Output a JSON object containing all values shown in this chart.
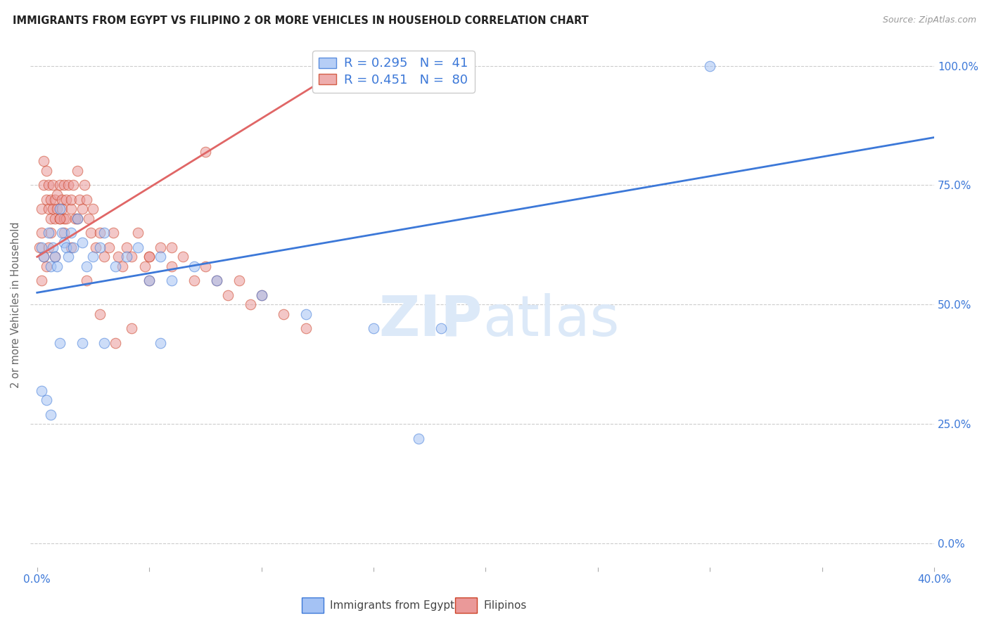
{
  "title": "IMMIGRANTS FROM EGYPT VS FILIPINO 2 OR MORE VEHICLES IN HOUSEHOLD CORRELATION CHART",
  "source": "Source: ZipAtlas.com",
  "ylabel": "2 or more Vehicles in Household",
  "legend_entry1": "R = 0.295   N =  41",
  "legend_entry2": "R = 0.451   N =  80",
  "legend_label1": "Immigrants from Egypt",
  "legend_label2": "Filipinos",
  "blue_fill": "#a4c2f4",
  "pink_fill": "#ea9999",
  "blue_edge": "#3c78d8",
  "pink_edge": "#cc4125",
  "blue_line": "#3c78d8",
  "pink_line": "#e06666",
  "watermark_color": "#dce9f8",
  "grid_color": "#cccccc",
  "tick_color": "#3c78d8",
  "ylabel_color": "#666666",
  "title_color": "#222222",
  "source_color": "#999999",
  "xlim": [
    0.0,
    0.4
  ],
  "ylim": [
    0.0,
    1.05
  ],
  "xtick_positions": [
    0.0,
    0.05,
    0.1,
    0.15,
    0.2,
    0.25,
    0.3,
    0.35,
    0.4
  ],
  "xtick_labels": [
    "0.0%",
    "",
    "",
    "",
    "",
    "",
    "",
    "",
    "40.0%"
  ],
  "ytick_positions": [
    0.0,
    0.25,
    0.5,
    0.75,
    1.0
  ],
  "ytick_labels": [
    "0.0%",
    "25.0%",
    "50.0%",
    "75.0%",
    "100.0%"
  ],
  "egypt_blue_line_x": [
    0.0,
    0.4
  ],
  "egypt_blue_line_y": [
    0.525,
    0.85
  ],
  "fil_pink_line_x": [
    0.0,
    0.145
  ],
  "fil_pink_line_y": [
    0.6,
    1.02
  ],
  "egypt_x": [
    0.002,
    0.003,
    0.005,
    0.006,
    0.007,
    0.008,
    0.009,
    0.01,
    0.011,
    0.012,
    0.013,
    0.014,
    0.015,
    0.016,
    0.018,
    0.02,
    0.022,
    0.025,
    0.028,
    0.03,
    0.035,
    0.04,
    0.045,
    0.05,
    0.055,
    0.06,
    0.07,
    0.08,
    0.1,
    0.12,
    0.15,
    0.18,
    0.002,
    0.004,
    0.006,
    0.01,
    0.02,
    0.03,
    0.055,
    0.17,
    0.3
  ],
  "egypt_y": [
    0.62,
    0.6,
    0.65,
    0.58,
    0.62,
    0.6,
    0.58,
    0.7,
    0.65,
    0.63,
    0.62,
    0.6,
    0.65,
    0.62,
    0.68,
    0.63,
    0.58,
    0.6,
    0.62,
    0.65,
    0.58,
    0.6,
    0.62,
    0.55,
    0.6,
    0.55,
    0.58,
    0.55,
    0.52,
    0.48,
    0.45,
    0.45,
    0.32,
    0.3,
    0.27,
    0.42,
    0.42,
    0.42,
    0.42,
    0.22,
    1.0
  ],
  "filipino_x": [
    0.001,
    0.002,
    0.002,
    0.003,
    0.003,
    0.004,
    0.004,
    0.005,
    0.005,
    0.006,
    0.006,
    0.007,
    0.007,
    0.008,
    0.008,
    0.009,
    0.009,
    0.01,
    0.01,
    0.011,
    0.011,
    0.012,
    0.012,
    0.013,
    0.013,
    0.014,
    0.015,
    0.015,
    0.016,
    0.017,
    0.018,
    0.019,
    0.02,
    0.021,
    0.022,
    0.023,
    0.024,
    0.025,
    0.026,
    0.028,
    0.03,
    0.032,
    0.034,
    0.036,
    0.038,
    0.04,
    0.042,
    0.045,
    0.048,
    0.05,
    0.055,
    0.06,
    0.065,
    0.07,
    0.075,
    0.08,
    0.085,
    0.09,
    0.095,
    0.1,
    0.11,
    0.12,
    0.002,
    0.003,
    0.004,
    0.005,
    0.006,
    0.008,
    0.01,
    0.012,
    0.015,
    0.018,
    0.022,
    0.028,
    0.035,
    0.042,
    0.05,
    0.06,
    0.075,
    0.05
  ],
  "filipino_y": [
    0.62,
    0.7,
    0.65,
    0.75,
    0.8,
    0.72,
    0.78,
    0.7,
    0.75,
    0.72,
    0.68,
    0.75,
    0.7,
    0.72,
    0.68,
    0.73,
    0.7,
    0.75,
    0.68,
    0.72,
    0.7,
    0.68,
    0.75,
    0.72,
    0.68,
    0.75,
    0.7,
    0.72,
    0.75,
    0.68,
    0.78,
    0.72,
    0.7,
    0.75,
    0.72,
    0.68,
    0.65,
    0.7,
    0.62,
    0.65,
    0.6,
    0.62,
    0.65,
    0.6,
    0.58,
    0.62,
    0.6,
    0.65,
    0.58,
    0.6,
    0.62,
    0.58,
    0.6,
    0.55,
    0.58,
    0.55,
    0.52,
    0.55,
    0.5,
    0.52,
    0.48,
    0.45,
    0.55,
    0.6,
    0.58,
    0.62,
    0.65,
    0.6,
    0.68,
    0.65,
    0.62,
    0.68,
    0.55,
    0.48,
    0.42,
    0.45,
    0.55,
    0.62,
    0.82,
    0.6
  ]
}
